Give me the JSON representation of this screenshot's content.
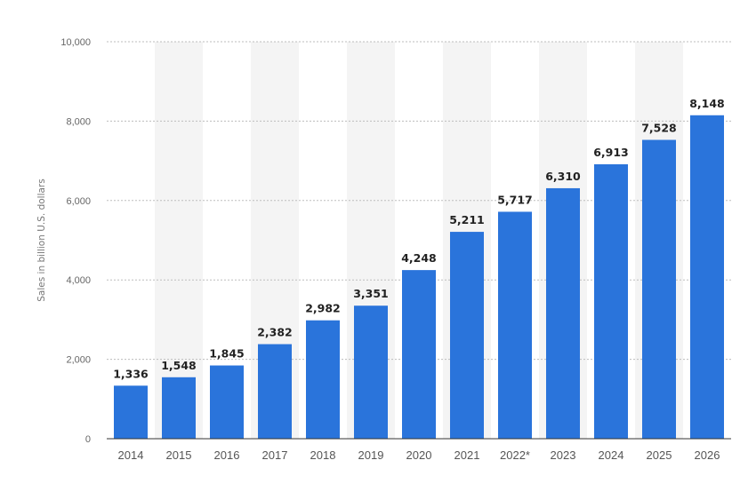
{
  "chart_data": {
    "type": "bar",
    "title": "",
    "xlabel": "",
    "ylabel": "Sales in billion U.S. dollars",
    "categories": [
      "2014",
      "2015",
      "2016",
      "2017",
      "2018",
      "2019",
      "2020",
      "2021",
      "2022*",
      "2023",
      "2024",
      "2025",
      "2026"
    ],
    "values": [
      1336,
      1548,
      1845,
      2382,
      2982,
      3351,
      4248,
      5211,
      5717,
      6310,
      6913,
      7528,
      8148
    ],
    "value_labels": [
      "1,336",
      "1,548",
      "1,845",
      "2,382",
      "2,982",
      "3,351",
      "4,248",
      "5,211",
      "5,717",
      "6,310",
      "6,913",
      "7,528",
      "8,148"
    ],
    "ylim": [
      0,
      10000
    ],
    "yticks": [
      0,
      2000,
      4000,
      6000,
      8000,
      10000
    ],
    "ytick_labels": [
      "0",
      "2,000",
      "4,000",
      "6,000",
      "8,000",
      "10,000"
    ],
    "grid": true,
    "legend": "none",
    "bar_color": "#2a74db",
    "alt_band_color": "#f4f4f4"
  }
}
